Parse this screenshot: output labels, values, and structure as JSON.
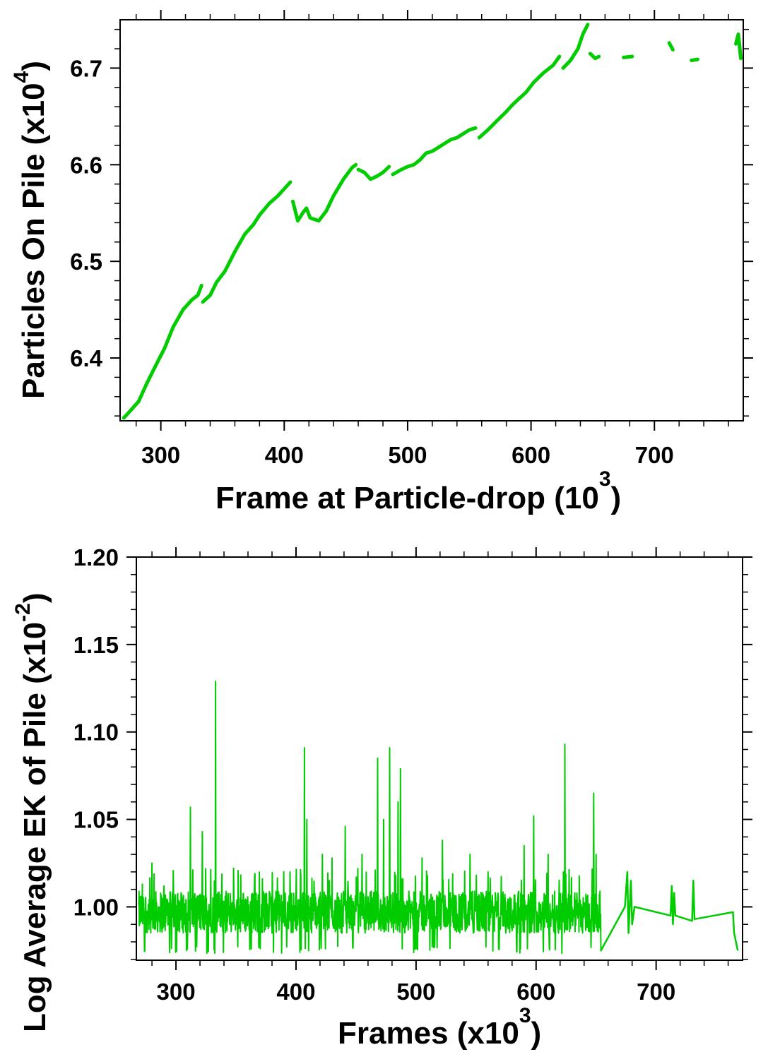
{
  "chart_data": [
    {
      "type": "line",
      "title": "",
      "xlabel": {
        "text": "Frame at Particle-drop (10",
        "sup": "3",
        "close": ")"
      },
      "ylabel": {
        "text": "Particles On Pile (x10",
        "sup": "4",
        "close": ")"
      },
      "xlim": [
        267,
        772
      ],
      "ylim": [
        6.335,
        6.75
      ],
      "xticks": [
        300,
        400,
        500,
        600,
        700
      ],
      "yticks": [
        6.4,
        6.5,
        6.6,
        6.7
      ],
      "xtick_labels": [
        "300",
        "400",
        "500",
        "600",
        "700"
      ],
      "ytick_labels": [
        "6.4",
        "6.5",
        "6.6",
        "6.7"
      ],
      "grid": false,
      "color": "#00cc00",
      "series": [
        {
          "segments": [
            [
              [
                270,
                6.338
              ],
              [
                275,
                6.345
              ],
              [
                282,
                6.355
              ],
              [
                288,
                6.372
              ],
              [
                295,
                6.39
              ],
              [
                303,
                6.41
              ],
              [
                310,
                6.432
              ],
              [
                318,
                6.45
              ],
              [
                325,
                6.46
              ],
              [
                330,
                6.465
              ],
              [
                333,
                6.475
              ]
            ],
            [
              [
                334,
                6.458
              ],
              [
                340,
                6.465
              ],
              [
                345,
                6.478
              ],
              [
                352,
                6.49
              ],
              [
                360,
                6.51
              ],
              [
                368,
                6.528
              ],
              [
                375,
                6.538
              ],
              [
                380,
                6.548
              ],
              [
                388,
                6.56
              ],
              [
                395,
                6.568
              ],
              [
                400,
                6.575
              ],
              [
                405,
                6.582
              ]
            ],
            [
              [
                407,
                6.562
              ],
              [
                411,
                6.542
              ],
              [
                415,
                6.55
              ],
              [
                418,
                6.555
              ],
              [
                421,
                6.545
              ],
              [
                428,
                6.542
              ],
              [
                434,
                6.552
              ],
              [
                440,
                6.568
              ],
              [
                448,
                6.585
              ],
              [
                455,
                6.597
              ],
              [
                458,
                6.6
              ]
            ],
            [
              [
                460,
                6.595
              ],
              [
                465,
                6.592
              ],
              [
                470,
                6.585
              ],
              [
                475,
                6.588
              ],
              [
                480,
                6.592
              ],
              [
                485,
                6.598
              ]
            ],
            [
              [
                488,
                6.59
              ],
              [
                495,
                6.595
              ],
              [
                500,
                6.598
              ],
              [
                505,
                6.6
              ],
              [
                510,
                6.605
              ],
              [
                515,
                6.612
              ],
              [
                520,
                6.614
              ],
              [
                525,
                6.618
              ],
              [
                530,
                6.622
              ],
              [
                535,
                6.626
              ],
              [
                540,
                6.628
              ],
              [
                545,
                6.632
              ],
              [
                550,
                6.636
              ],
              [
                555,
                6.638
              ]
            ],
            [
              [
                558,
                6.628
              ],
              [
                565,
                6.636
              ],
              [
                572,
                6.645
              ],
              [
                580,
                6.655
              ],
              [
                585,
                6.662
              ],
              [
                590,
                6.668
              ],
              [
                596,
                6.675
              ],
              [
                602,
                6.685
              ],
              [
                610,
                6.695
              ],
              [
                618,
                6.703
              ],
              [
                623,
                6.712
              ]
            ],
            [
              [
                626,
                6.7
              ],
              [
                632,
                6.708
              ],
              [
                638,
                6.72
              ],
              [
                642,
                6.735
              ],
              [
                646,
                6.745
              ]
            ],
            [
              [
                648,
                6.715
              ],
              [
                652,
                6.71
              ],
              [
                655,
                6.712
              ]
            ],
            [
              [
                675,
                6.711
              ],
              [
                682,
                6.712
              ]
            ],
            [
              [
                712,
                6.726
              ],
              [
                715,
                6.719
              ]
            ],
            [
              [
                730,
                6.708
              ],
              [
                735,
                6.709
              ]
            ],
            [
              [
                766,
                6.725
              ],
              [
                768,
                6.735
              ],
              [
                770,
                6.71
              ]
            ]
          ]
        }
      ]
    },
    {
      "type": "line",
      "title": "",
      "xlabel": {
        "text": "Frames (x10",
        "sup": "3",
        "close": ")"
      },
      "ylabel": {
        "text": "Log Average EK of Pile (x10",
        "sup": "-2",
        "close": ")"
      },
      "xlim": [
        267,
        772
      ],
      "ylim": [
        0.9695,
        1.2
      ],
      "xticks": [
        300,
        400,
        500,
        600,
        700
      ],
      "yticks": [
        1.0,
        1.05,
        1.1,
        1.15,
        1.2
      ],
      "xtick_labels": [
        "300",
        "400",
        "500",
        "600",
        "700"
      ],
      "ytick_labels": [
        "1.00",
        "1.05",
        "1.10",
        "1.15",
        "1.20"
      ],
      "grid": false,
      "color": "#00cc00",
      "dense_x_range": [
        269,
        654
      ],
      "dense_base": 0.997,
      "dense_spread": 0.012,
      "spikes": [
        [
          272,
          1.013
        ],
        [
          280,
          1.025
        ],
        [
          290,
          1.012
        ],
        [
          312,
          1.057
        ],
        [
          322,
          1.043
        ],
        [
          333,
          1.129
        ],
        [
          348,
          1.022
        ],
        [
          372,
          1.016
        ],
        [
          395,
          1.02
        ],
        [
          407,
          1.091
        ],
        [
          409,
          1.05
        ],
        [
          422,
          1.03
        ],
        [
          430,
          1.028
        ],
        [
          441,
          1.046
        ],
        [
          455,
          1.03
        ],
        [
          468,
          1.085
        ],
        [
          473,
          1.05
        ],
        [
          478,
          1.091
        ],
        [
          485,
          1.06
        ],
        [
          487,
          1.079
        ],
        [
          505,
          1.028
        ],
        [
          522,
          1.038
        ],
        [
          545,
          1.03
        ],
        [
          560,
          1.02
        ],
        [
          590,
          1.035
        ],
        [
          598,
          1.052
        ],
        [
          610,
          1.03
        ],
        [
          624,
          1.093
        ],
        [
          648,
          1.065
        ],
        [
          650,
          1.03
        ]
      ],
      "sparse_segments": [
        [
          [
            654,
            0.975
          ],
          [
            674,
            1.0
          ],
          [
            676,
            1.02
          ],
          [
            677,
            0.985
          ],
          [
            679,
            1.015
          ],
          [
            680,
            0.99
          ],
          [
            682,
            1.0
          ],
          [
            712,
            0.995
          ],
          [
            713,
            1.012
          ],
          [
            714,
            0.99
          ],
          [
            715,
            1.008
          ],
          [
            716,
            0.995
          ],
          [
            730,
            0.992
          ],
          [
            731,
            1.015
          ],
          [
            732,
            0.993
          ],
          [
            764,
            0.997
          ],
          [
            765,
            0.985
          ],
          [
            768,
            0.975
          ]
        ]
      ]
    }
  ]
}
